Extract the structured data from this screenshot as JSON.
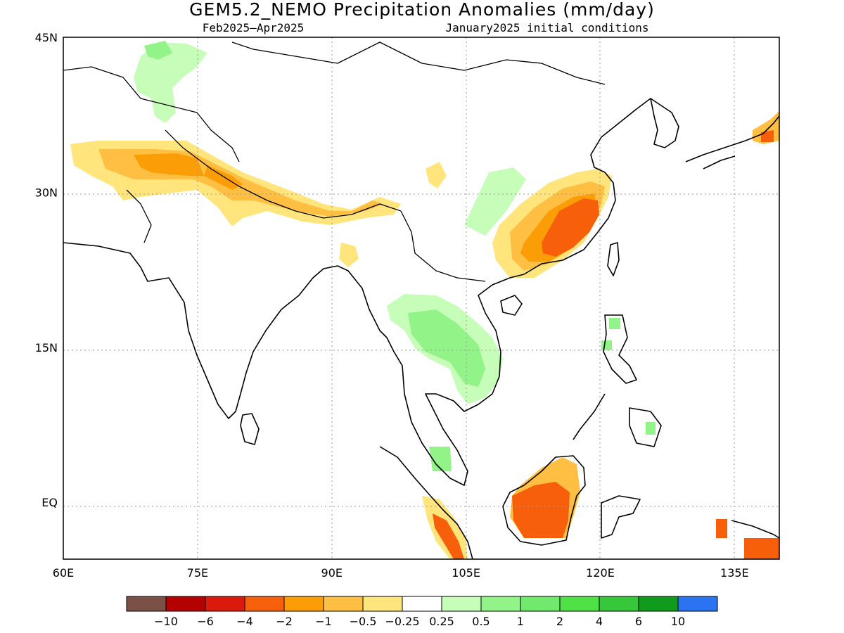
{
  "title": "GEM5.2_NEMO Precipitation Anomalies (mm/day)",
  "subtitle_left": "Feb2025–Apr2025",
  "subtitle_right": "January2025 initial conditions",
  "map": {
    "lon_range": [
      60,
      140
    ],
    "lat_range": [
      -5.5,
      45
    ],
    "lat_ticks": [
      {
        "value": 45,
        "label": "45N"
      },
      {
        "value": 30,
        "label": "30N"
      },
      {
        "value": 15,
        "label": "15N"
      },
      {
        "value": 0,
        "label": "EQ"
      }
    ],
    "lon_ticks": [
      {
        "value": 60,
        "label": "60E"
      },
      {
        "value": 75,
        "label": "75E"
      },
      {
        "value": 90,
        "label": "90E"
      },
      {
        "value": 105,
        "label": "105E"
      },
      {
        "value": 120,
        "label": "120E"
      },
      {
        "value": 135,
        "label": "135E"
      }
    ]
  },
  "colorbar": {
    "colors": [
      "#7b5146",
      "#b40000",
      "#dc1a0c",
      "#f75f0a",
      "#fb9d06",
      "#ffbf43",
      "#ffe57c",
      "#ffffff",
      "#c6fdb8",
      "#92f389",
      "#70e96c",
      "#50e146",
      "#36c83a",
      "#109b1c",
      "#2b73f0"
    ],
    "labels": [
      "−10",
      "−6",
      "−4",
      "−2",
      "−1",
      "−0.5",
      "−0.25",
      "0.25",
      "0.5",
      "1",
      "2",
      "4",
      "6",
      "10"
    ]
  }
}
